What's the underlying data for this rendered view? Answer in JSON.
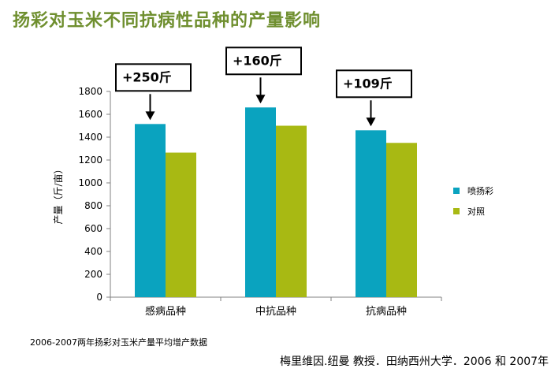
{
  "title": "扬彩对玉米不同抗病性品种的产量影响",
  "footnote_data": "2006-2007两年扬彩对玉米产量平均增产数据",
  "footnote_source": "梅里维因.纽曼 教授．田纳西州大学．2006 和 2007年",
  "colors": {
    "series1": "#0aa3bf",
    "series2": "#a8b913",
    "title": "#6f8f2f"
  },
  "chart_data": {
    "type": "bar",
    "categories": [
      "感病品种",
      "中抗品种",
      "抗病品种"
    ],
    "series": [
      {
        "name": "喷扬彩",
        "values": [
          1515,
          1660,
          1460
        ]
      },
      {
        "name": "对照",
        "values": [
          1265,
          1500,
          1350
        ]
      }
    ],
    "ylabel": "产量（斤/亩）",
    "ylim": [
      0,
      1800
    ],
    "yticks": [
      0,
      200,
      400,
      600,
      800,
      1000,
      1200,
      1400,
      1600,
      1800
    ],
    "legend_position": "right",
    "grid": false,
    "annotations": [
      "+250斤",
      "+160斤",
      "+109斤"
    ]
  }
}
